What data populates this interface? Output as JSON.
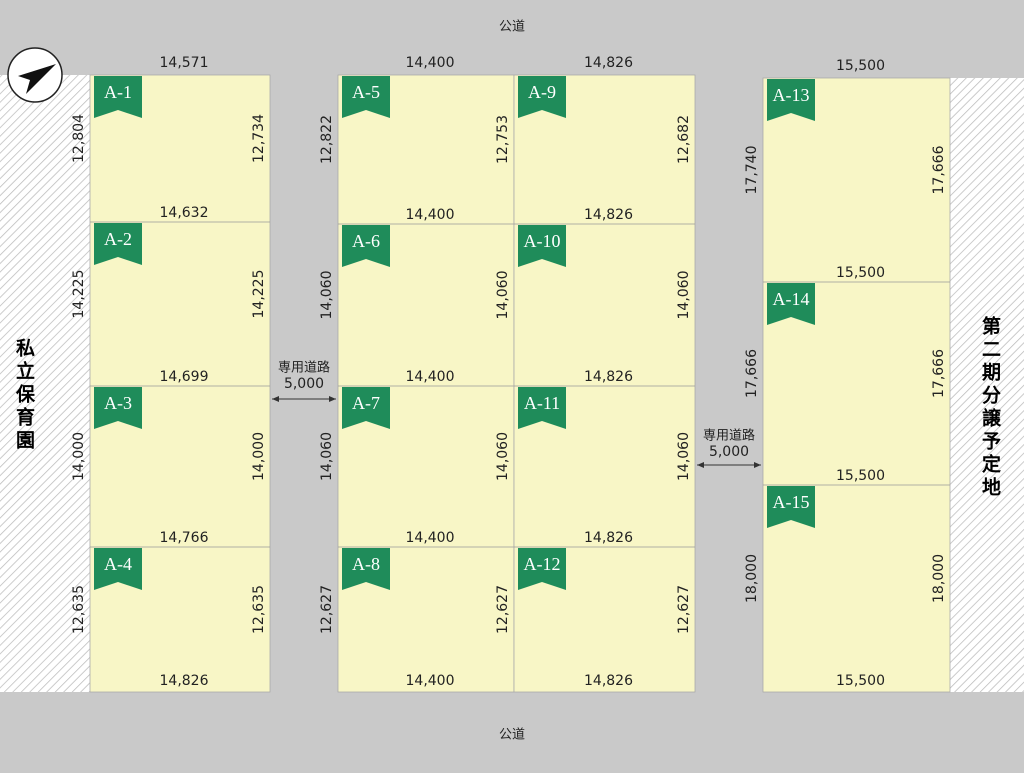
{
  "roads": {
    "top": "公道",
    "bottom": "公道"
  },
  "private_roads": [
    {
      "label": "専用道路",
      "width": "5,000"
    },
    {
      "label": "専用道路",
      "width": "5,000"
    }
  ],
  "neighbors": {
    "left": "私立保育園",
    "right": "第二期分譲予定地"
  },
  "blocks": [
    {
      "columns": [
        {
          "widths": [
            "14,571",
            "14,632",
            "14,699",
            "14,766",
            "14,826"
          ],
          "lots": [
            {
              "id": "A-1",
              "left": "12,804",
              "right": "12,734"
            },
            {
              "id": "A-2",
              "left": "14,225",
              "right": "14,225"
            },
            {
              "id": "A-3",
              "left": "14,000",
              "right": "14,000"
            },
            {
              "id": "A-4",
              "left": "12,635",
              "right": "12,635"
            }
          ]
        }
      ]
    },
    {
      "columns": [
        {
          "widths": [
            "14,400",
            "14,400",
            "14,400",
            "14,400",
            "14,400"
          ],
          "lots": [
            {
              "id": "A-5",
              "left": "12,822",
              "right": "12,753"
            },
            {
              "id": "A-6",
              "left": "14,060",
              "right": "14,060"
            },
            {
              "id": "A-7",
              "left": "14,060",
              "right": "14,060"
            },
            {
              "id": "A-8",
              "left": "12,627",
              "right": "12,627"
            }
          ]
        },
        {
          "widths": [
            "14,826",
            "14,826",
            "14,826",
            "14,826",
            "14,826"
          ],
          "lots": [
            {
              "id": "A-9",
              "right": "12,682"
            },
            {
              "id": "A-10",
              "right": "14,060"
            },
            {
              "id": "A-11",
              "right": "14,060"
            },
            {
              "id": "A-12",
              "right": "12,627"
            }
          ]
        }
      ]
    },
    {
      "columns": [
        {
          "widths": [
            "15,500",
            "15,500",
            "15,500",
            "15,500"
          ],
          "lots": [
            {
              "id": "A-13",
              "left": "17,740",
              "right": "17,666"
            },
            {
              "id": "A-14",
              "left": "17,666",
              "right": "17,666"
            },
            {
              "id": "A-15",
              "left": "18,000",
              "right": "18,000"
            }
          ]
        }
      ]
    }
  ]
}
